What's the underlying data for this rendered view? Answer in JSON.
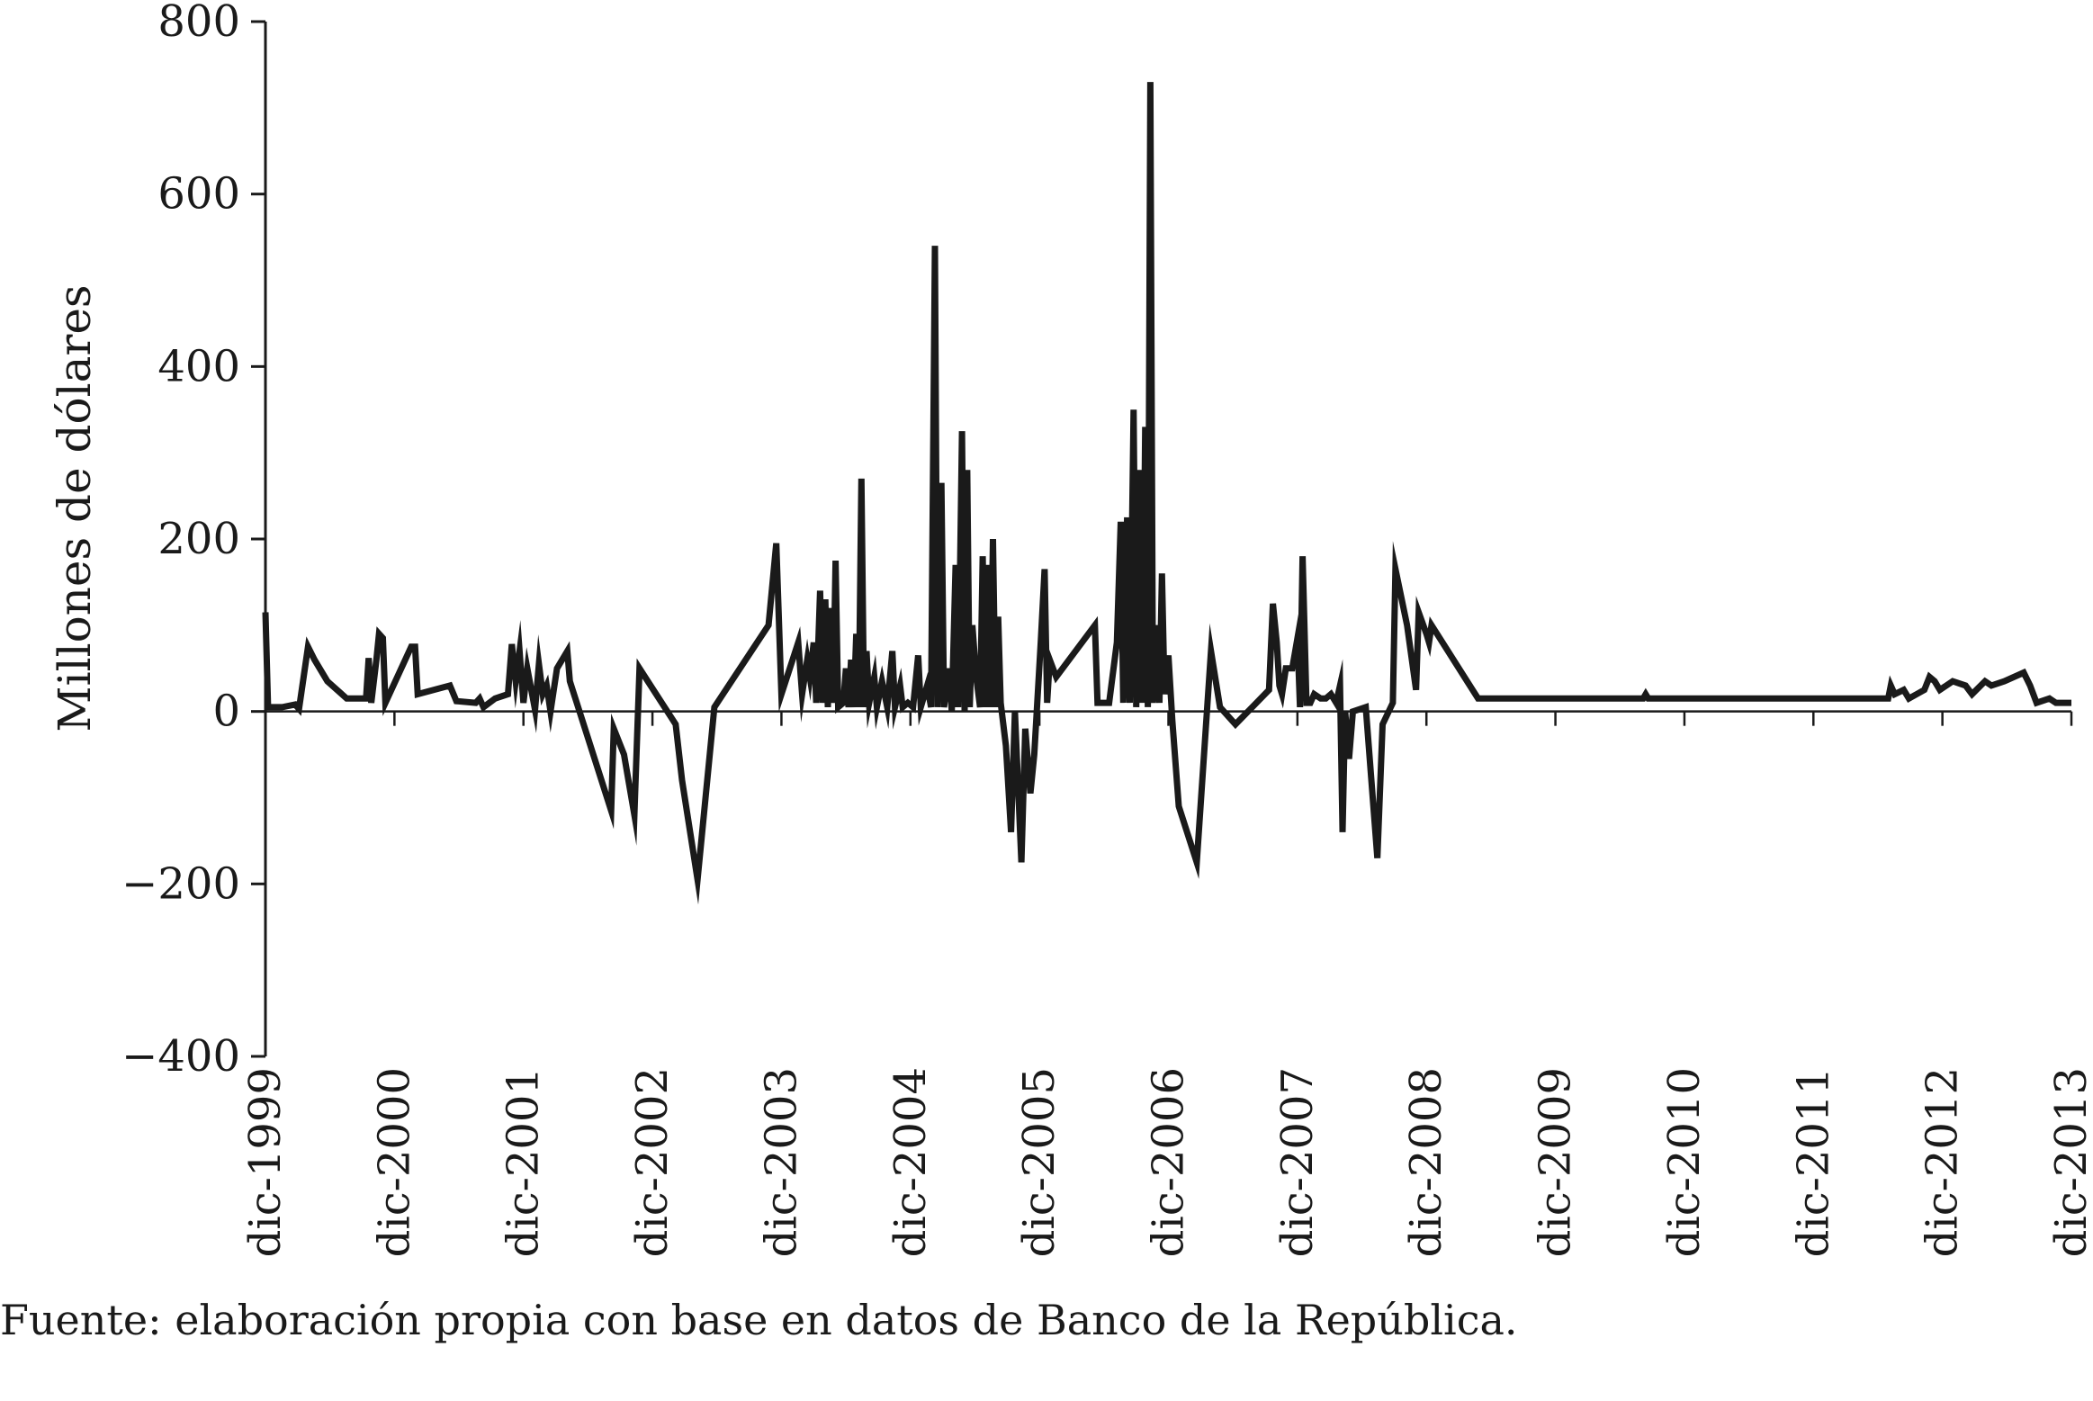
{
  "chart_data": {
    "type": "line",
    "ylabel": "Millones de dólares",
    "ylim": [
      -400,
      800
    ],
    "yticks": [
      -400,
      -200,
      0,
      200,
      400,
      600,
      800
    ],
    "ytick_labels": [
      "−400",
      "−200",
      "0",
      "200",
      "400",
      "600",
      "800"
    ],
    "x_range": [
      1999.92,
      2013.92
    ],
    "xticks": [
      1999.92,
      2000.92,
      2001.92,
      2002.92,
      2003.92,
      2004.92,
      2005.92,
      2006.92,
      2007.92,
      2008.92,
      2009.92,
      2010.92,
      2011.92,
      2012.92,
      2013.92
    ],
    "xtick_labels": [
      "dic-1999",
      "dic-2000",
      "dic-2001",
      "dic-2002",
      "dic-2003",
      "dic-2004",
      "dic-2005",
      "dic-2006",
      "dic-2007",
      "dic-2008",
      "dic-2009",
      "dic-2010",
      "dic-2011",
      "dic-2012",
      "dic-2013"
    ],
    "grid": false,
    "legend": "none",
    "series": [
      {
        "color": "#1a1a1a",
        "points": [
          [
            1999.92,
            115
          ],
          [
            1999.94,
            5
          ],
          [
            2000.05,
            5
          ],
          [
            2000.15,
            8
          ],
          [
            2000.18,
            3
          ],
          [
            2000.25,
            75
          ],
          [
            2000.3,
            60
          ],
          [
            2000.4,
            35
          ],
          [
            2000.55,
            15
          ],
          [
            2000.7,
            15
          ],
          [
            2000.72,
            62
          ],
          [
            2000.74,
            10
          ],
          [
            2000.78,
            60
          ],
          [
            2000.8,
            90
          ],
          [
            2000.83,
            85
          ],
          [
            2000.85,
            10
          ],
          [
            2001.05,
            75
          ],
          [
            2001.08,
            75
          ],
          [
            2001.1,
            20
          ],
          [
            2001.35,
            30
          ],
          [
            2001.4,
            12
          ],
          [
            2001.55,
            10
          ],
          [
            2001.58,
            15
          ],
          [
            2001.61,
            5
          ],
          [
            2001.7,
            15
          ],
          [
            2001.8,
            20
          ],
          [
            2001.83,
            78
          ],
          [
            2001.86,
            35
          ],
          [
            2001.89,
            70
          ],
          [
            2001.92,
            10
          ],
          [
            2001.95,
            50
          ],
          [
            2002.01,
            2
          ],
          [
            2002.04,
            55
          ],
          [
            2002.07,
            20
          ],
          [
            2002.1,
            30
          ],
          [
            2002.13,
            0
          ],
          [
            2002.18,
            50
          ],
          [
            2002.26,
            70
          ],
          [
            2002.28,
            35
          ],
          [
            2002.6,
            -115
          ],
          [
            2002.62,
            -20
          ],
          [
            2002.7,
            -50
          ],
          [
            2002.78,
            -120
          ],
          [
            2002.82,
            50
          ],
          [
            2003.1,
            -15
          ],
          [
            2003.15,
            -80
          ],
          [
            2003.27,
            -195
          ],
          [
            2003.4,
            5
          ],
          [
            2003.82,
            100
          ],
          [
            2003.88,
            195
          ],
          [
            2003.92,
            20
          ],
          [
            2004.05,
            80
          ],
          [
            2004.08,
            20
          ],
          [
            2004.12,
            60
          ],
          [
            2004.14,
            40
          ],
          [
            2004.17,
            80
          ],
          [
            2004.19,
            10
          ],
          [
            2004.22,
            140
          ],
          [
            2004.24,
            10
          ],
          [
            2004.26,
            130
          ],
          [
            2004.28,
            5
          ],
          [
            2004.3,
            120
          ],
          [
            2004.32,
            10
          ],
          [
            2004.34,
            175
          ],
          [
            2004.36,
            5
          ],
          [
            2004.4,
            10
          ],
          [
            2004.42,
            50
          ],
          [
            2004.44,
            5
          ],
          [
            2004.46,
            60
          ],
          [
            2004.48,
            5
          ],
          [
            2004.5,
            90
          ],
          [
            2004.52,
            5
          ],
          [
            2004.54,
            270
          ],
          [
            2004.56,
            5
          ],
          [
            2004.58,
            70
          ],
          [
            2004.6,
            10
          ],
          [
            2004.64,
            40
          ],
          [
            2004.66,
            5
          ],
          [
            2004.7,
            35
          ],
          [
            2004.74,
            5
          ],
          [
            2004.78,
            70
          ],
          [
            2004.8,
            5
          ],
          [
            2004.84,
            30
          ],
          [
            2004.86,
            5
          ],
          [
            2004.9,
            10
          ],
          [
            2004.94,
            5
          ],
          [
            2004.98,
            65
          ],
          [
            2005.0,
            5
          ],
          [
            2005.05,
            30
          ],
          [
            2005.08,
            5
          ],
          [
            2005.11,
            540
          ],
          [
            2005.13,
            5
          ],
          [
            2005.16,
            265
          ],
          [
            2005.18,
            5
          ],
          [
            2005.22,
            50
          ],
          [
            2005.24,
            0
          ],
          [
            2005.27,
            170
          ],
          [
            2005.29,
            5
          ],
          [
            2005.32,
            325
          ],
          [
            2005.34,
            0
          ],
          [
            2005.36,
            280
          ],
          [
            2005.38,
            5
          ],
          [
            2005.4,
            100
          ],
          [
            2005.43,
            40
          ],
          [
            2005.46,
            5
          ],
          [
            2005.48,
            180
          ],
          [
            2005.5,
            5
          ],
          [
            2005.52,
            170
          ],
          [
            2005.54,
            5
          ],
          [
            2005.56,
            200
          ],
          [
            2005.58,
            5
          ],
          [
            2005.6,
            110
          ],
          [
            2005.62,
            10
          ],
          [
            2005.66,
            -40
          ],
          [
            2005.7,
            -140
          ],
          [
            2005.73,
            0
          ],
          [
            2005.78,
            -175
          ],
          [
            2005.81,
            -20
          ],
          [
            2005.85,
            -95
          ],
          [
            2005.88,
            -50
          ],
          [
            2005.93,
            80
          ],
          [
            2005.96,
            165
          ],
          [
            2005.98,
            10
          ],
          [
            2006.0,
            60
          ],
          [
            2006.05,
            40
          ],
          [
            2006.35,
            100
          ],
          [
            2006.37,
            10
          ],
          [
            2006.46,
            10
          ],
          [
            2006.52,
            80
          ],
          [
            2006.55,
            220
          ],
          [
            2006.57,
            10
          ],
          [
            2006.6,
            225
          ],
          [
            2006.62,
            10
          ],
          [
            2006.65,
            350
          ],
          [
            2006.67,
            5
          ],
          [
            2006.7,
            280
          ],
          [
            2006.72,
            10
          ],
          [
            2006.74,
            330
          ],
          [
            2006.76,
            5
          ],
          [
            2006.78,
            730
          ],
          [
            2006.8,
            10
          ],
          [
            2006.83,
            100
          ],
          [
            2006.85,
            10
          ],
          [
            2006.87,
            160
          ],
          [
            2006.89,
            20
          ],
          [
            2006.92,
            65
          ],
          [
            2006.95,
            -10
          ],
          [
            2007.0,
            -110
          ],
          [
            2007.14,
            -175
          ],
          [
            2007.25,
            70
          ],
          [
            2007.32,
            5
          ],
          [
            2007.44,
            -15
          ],
          [
            2007.7,
            25
          ],
          [
            2007.73,
            125
          ],
          [
            2007.76,
            80
          ],
          [
            2007.78,
            30
          ],
          [
            2007.8,
            20
          ],
          [
            2007.83,
            50
          ],
          [
            2007.88,
            50
          ],
          [
            2007.92,
            85
          ],
          [
            2007.94,
            5
          ],
          [
            2007.96,
            180
          ],
          [
            2007.99,
            10
          ],
          [
            2008.02,
            10
          ],
          [
            2008.05,
            20
          ],
          [
            2008.1,
            15
          ],
          [
            2008.14,
            15
          ],
          [
            2008.18,
            20
          ],
          [
            2008.22,
            10
          ],
          [
            2008.25,
            30
          ],
          [
            2008.27,
            -140
          ],
          [
            2008.29,
            0
          ],
          [
            2008.32,
            -55
          ],
          [
            2008.35,
            0
          ],
          [
            2008.45,
            5
          ],
          [
            2008.54,
            -170
          ],
          [
            2008.58,
            -15
          ],
          [
            2008.66,
            10
          ],
          [
            2008.68,
            165
          ],
          [
            2008.77,
            100
          ],
          [
            2008.84,
            25
          ],
          [
            2008.86,
            115
          ],
          [
            2008.92,
            90
          ],
          [
            2008.94,
            80
          ],
          [
            2008.96,
            100
          ],
          [
            2009.32,
            15
          ],
          [
            2010.6,
            15
          ],
          [
            2010.62,
            20
          ],
          [
            2010.64,
            15
          ],
          [
            2011.9,
            15
          ],
          [
            2012.5,
            15
          ],
          [
            2012.52,
            30
          ],
          [
            2012.55,
            20
          ],
          [
            2012.62,
            25
          ],
          [
            2012.66,
            15
          ],
          [
            2012.72,
            20
          ],
          [
            2012.78,
            25
          ],
          [
            2012.82,
            40
          ],
          [
            2012.86,
            35
          ],
          [
            2012.9,
            25
          ],
          [
            2013.0,
            35
          ],
          [
            2013.1,
            30
          ],
          [
            2013.15,
            20
          ],
          [
            2013.25,
            35
          ],
          [
            2013.3,
            30
          ],
          [
            2013.4,
            35
          ],
          [
            2013.55,
            45
          ],
          [
            2013.6,
            30
          ],
          [
            2013.65,
            10
          ],
          [
            2013.75,
            15
          ],
          [
            2013.8,
            10
          ],
          [
            2013.92,
            10
          ]
        ]
      }
    ]
  },
  "source_text": "Fuente: elaboración propia con base en datos de Banco de la República."
}
